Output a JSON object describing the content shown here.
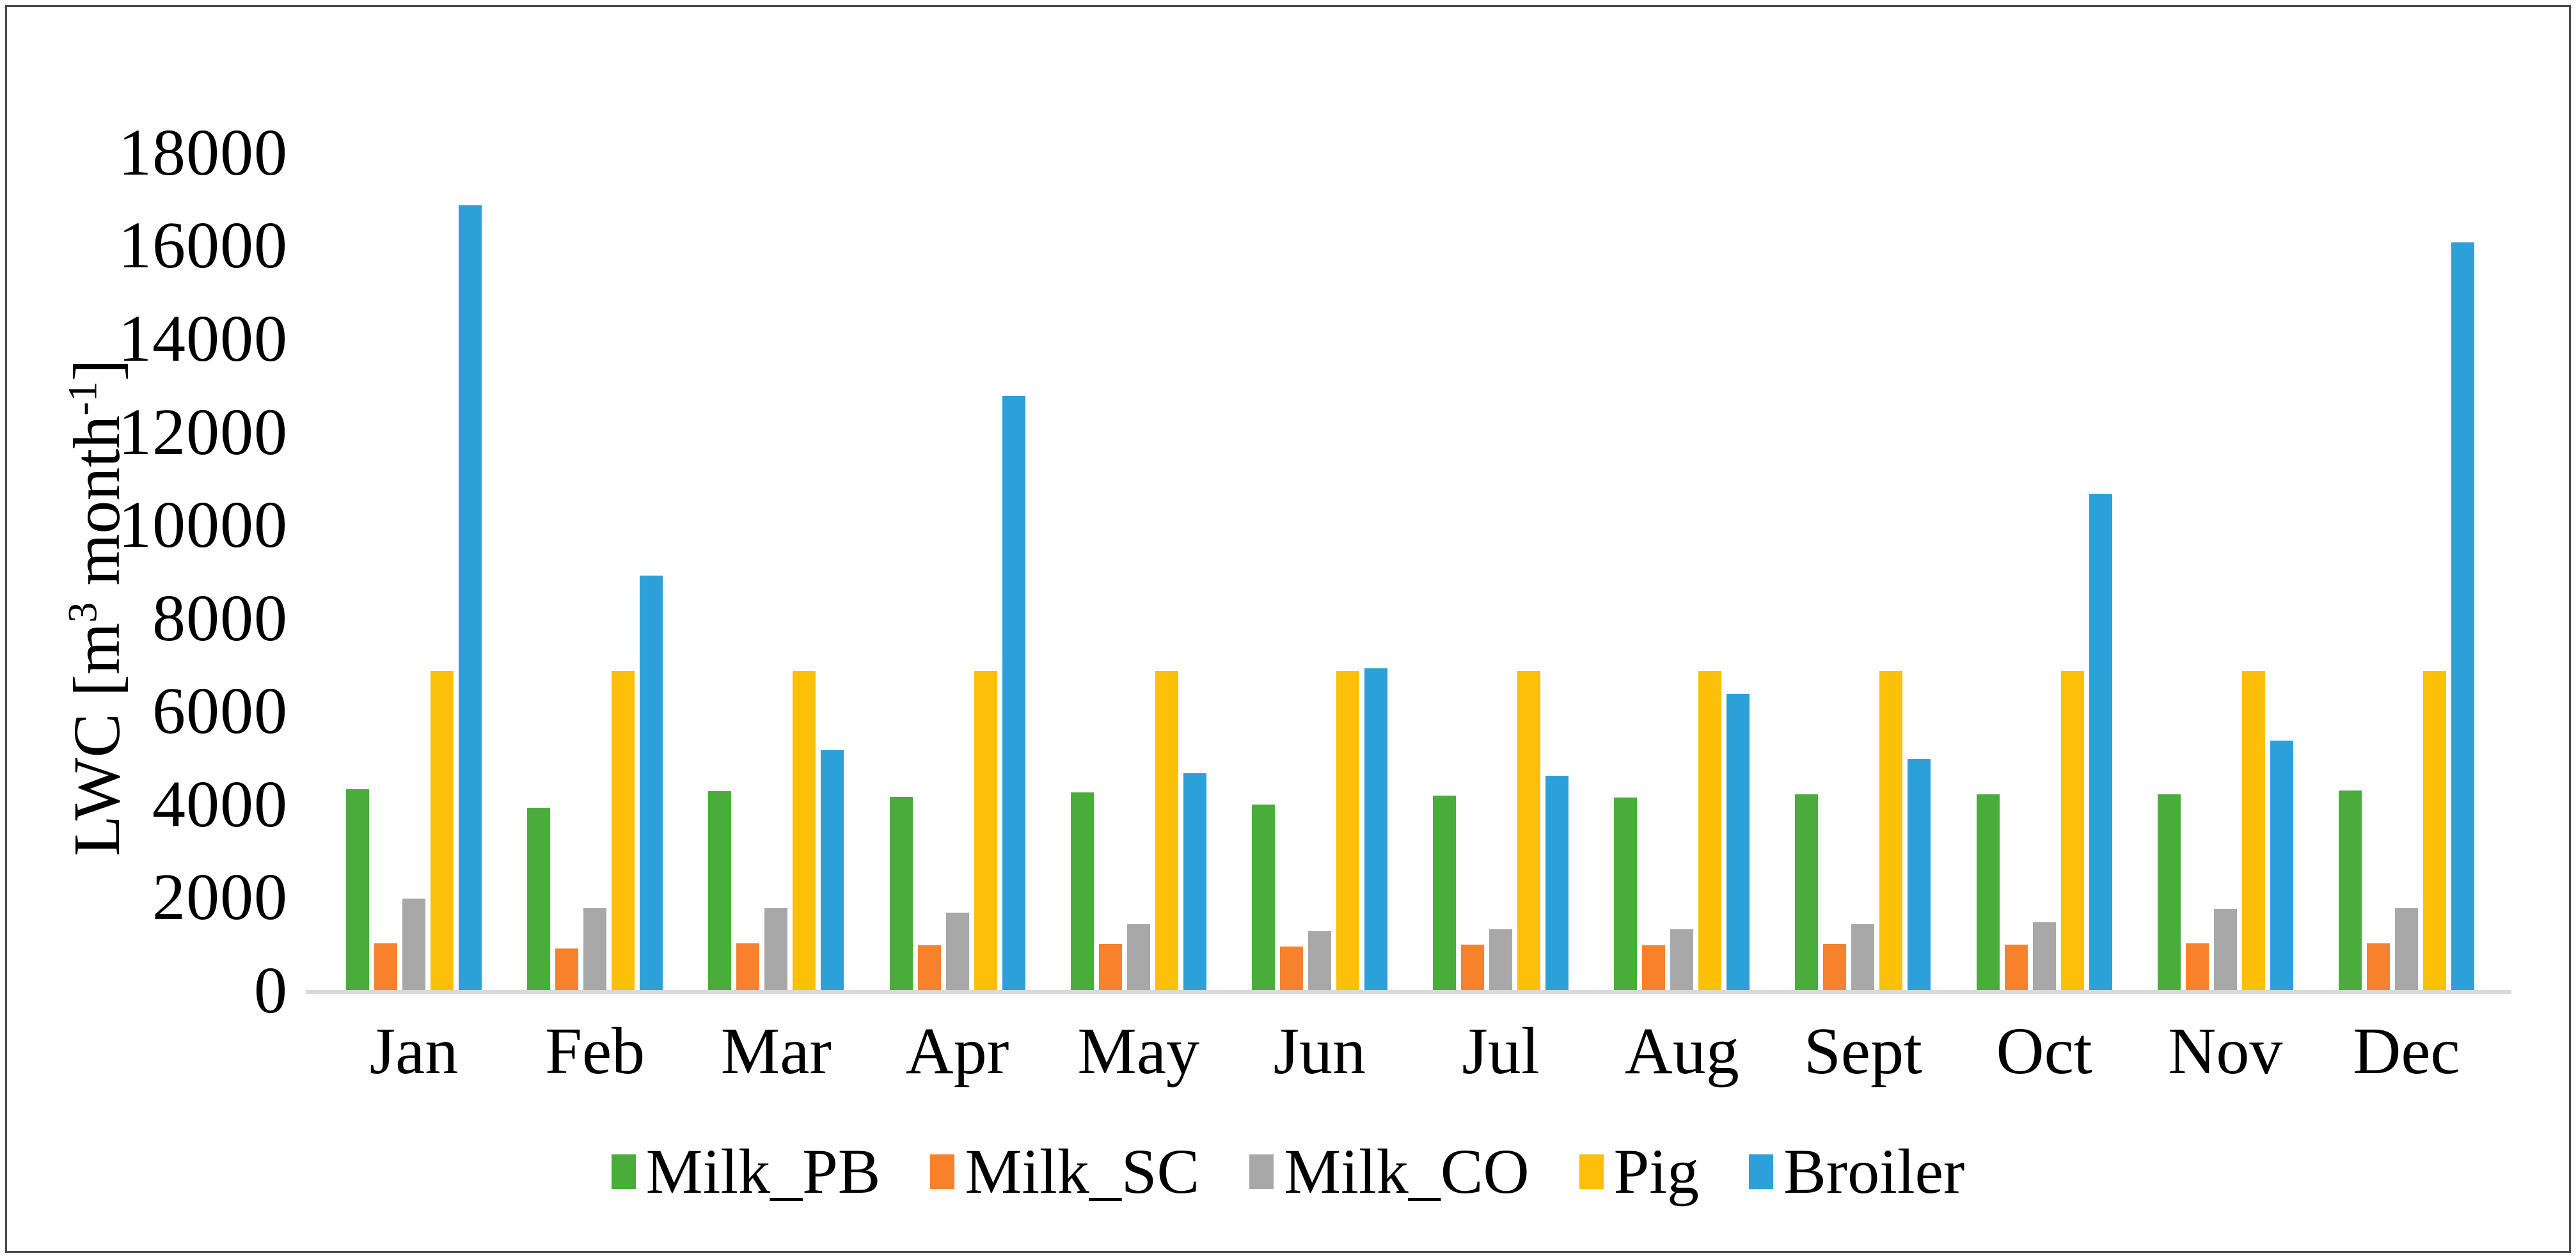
{
  "figure": {
    "background": "#ffffff",
    "border_color": "#4a4a4a",
    "axis_line_color": "#d9d9d9"
  },
  "y_axis": {
    "min": 0,
    "max": 18000,
    "step": 2000,
    "title_parts": {
      "prefix": "LWC [m",
      "sup1": "3",
      "mid": " month",
      "sup2": "-1",
      "suffix": "]"
    }
  },
  "chart_data": {
    "type": "bar",
    "title": "",
    "xlabel": "",
    "ylabel": "LWC [m3 month-1]",
    "ylim": [
      0,
      18000
    ],
    "ytick_step": 2000,
    "grid": false,
    "legend_position": "bottom",
    "categories": [
      "Jan",
      "Feb",
      "Mar",
      "Apr",
      "May",
      "Jun",
      "Jul",
      "Aug",
      "Sept",
      "Oct",
      "Nov",
      "Dec"
    ],
    "series": [
      {
        "name": "Milk_PB",
        "color": "#4aad3b",
        "values": [
          4350,
          3960,
          4310,
          4190,
          4290,
          4030,
          4220,
          4180,
          4250,
          4250,
          4250,
          4330
        ]
      },
      {
        "name": "Milk_SC",
        "color": "#f8812c",
        "values": [
          1050,
          930,
          1050,
          1000,
          1030,
          980,
          1020,
          1000,
          1030,
          1020,
          1050,
          1050
        ]
      },
      {
        "name": "Milk_CO",
        "color": "#a8a8a8",
        "values": [
          2000,
          1800,
          1800,
          1700,
          1450,
          1310,
          1350,
          1350,
          1450,
          1500,
          1790,
          1800
        ]
      },
      {
        "name": "Pig",
        "color": "#fdc008",
        "values": [
          6900,
          6900,
          6900,
          6900,
          6900,
          6900,
          6900,
          6900,
          6900,
          6900,
          6900,
          6900
        ]
      },
      {
        "name": "Broiler",
        "color": "#2ba0d9",
        "values": [
          16900,
          8950,
          5200,
          12800,
          4700,
          6950,
          4650,
          6400,
          5000,
          10700,
          5400,
          16100
        ]
      }
    ]
  }
}
